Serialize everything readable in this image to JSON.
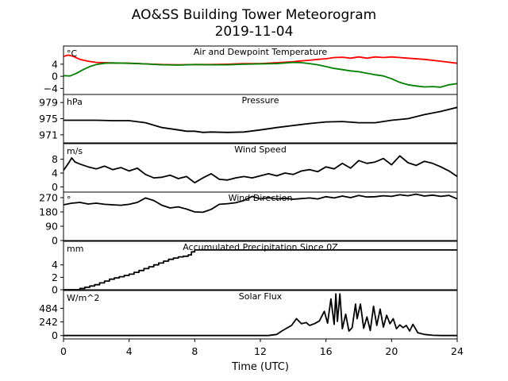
{
  "chart_data": {
    "type": "line",
    "title": "AO&SS Building Tower Meteorogram",
    "subtitle": "2019-11-04",
    "xlabel": "Time (UTC)",
    "xlim": [
      0,
      24
    ],
    "xticks": [
      0,
      4,
      8,
      12,
      16,
      20,
      24
    ],
    "panels": [
      {
        "title": "Air and Dewpoint Temperature",
        "unit": "°C",
        "ylim": [
          -6,
          10
        ],
        "yticks": [
          -4,
          0,
          4
        ],
        "series": [
          {
            "color": "#ff0000",
            "x": [
              0,
              0.3,
              0.6,
              1.0,
              1.5,
              2.0,
              3,
              4,
              5,
              6,
              7,
              8,
              9,
              10,
              11,
              12,
              13,
              14,
              14.5,
              15,
              15.5,
              16,
              16.5,
              17,
              17.5,
              18,
              18.5,
              19,
              19.5,
              20,
              20.5,
              21,
              22,
              23,
              24
            ],
            "y": [
              6.6,
              7.0,
              6.6,
              5.6,
              5.0,
              4.6,
              4.4,
              4.3,
              4.1,
              3.9,
              3.8,
              3.9,
              3.9,
              4.0,
              4.2,
              4.2,
              4.5,
              4.8,
              5.1,
              5.3,
              5.6,
              5.8,
              6.2,
              6.3,
              6.0,
              6.4,
              6.0,
              6.4,
              6.2,
              6.4,
              6.2,
              6.0,
              5.6,
              5.0,
              4.3
            ]
          },
          {
            "color": "#008000",
            "x": [
              0,
              0.4,
              0.8,
              1.2,
              1.6,
              2.0,
              2.5,
              3,
              4,
              5,
              6,
              7,
              8,
              9,
              10,
              11,
              12,
              13,
              14,
              14.5,
              15,
              15.5,
              16,
              16.5,
              17,
              17.5,
              18,
              18.5,
              19,
              19.5,
              20,
              20.5,
              21,
              21.5,
              22,
              22.5,
              23,
              23.5,
              24
            ],
            "y": [
              0.2,
              0.1,
              1.0,
              2.2,
              3.2,
              3.9,
              4.3,
              4.4,
              4.3,
              4.1,
              3.8,
              3.7,
              3.9,
              3.8,
              3.8,
              4.0,
              4.1,
              4.2,
              4.6,
              4.5,
              4.2,
              3.8,
              3.2,
              2.6,
              2.2,
              1.8,
              1.5,
              1.0,
              0.5,
              0.1,
              -0.8,
              -2.0,
              -2.8,
              -3.2,
              -3.5,
              -3.4,
              -3.6,
              -2.8,
              -2.4
            ]
          }
        ]
      },
      {
        "title": "Pressure",
        "unit": "hPa",
        "ylim": [
          969,
          981
        ],
        "yticks": [
          971,
          975,
          979
        ],
        "series": [
          {
            "color": "#000000",
            "x": [
              0,
              1,
              2,
              3,
              4,
              5,
              6,
              7,
              7.5,
              8,
              8.5,
              9,
              10,
              11,
              12,
              13,
              14,
              15,
              16,
              17,
              18,
              19,
              20,
              21,
              22,
              23,
              24
            ],
            "y": [
              974.6,
              974.6,
              974.6,
              974.5,
              974.5,
              974.0,
              972.8,
              972.2,
              971.9,
              971.9,
              971.6,
              971.7,
              971.6,
              971.7,
              972.2,
              972.8,
              973.3,
              973.8,
              974.2,
              974.3,
              974.0,
              974.0,
              974.6,
              975.0,
              976.0,
              976.8,
              977.8
            ]
          }
        ]
      },
      {
        "title": "Wind Speed",
        "unit": "m/s",
        "ylim": [
          -1.5,
          12.5
        ],
        "yticks": [
          0,
          4,
          8
        ],
        "series": [
          {
            "color": "#000000",
            "x": [
              0,
              0.3,
              0.5,
              0.7,
              1.0,
              1.5,
              2,
              2.5,
              3,
              3.5,
              4,
              4.5,
              5,
              5.5,
              6,
              6.5,
              7,
              7.5,
              8,
              8.5,
              9,
              9.5,
              10,
              10.5,
              11,
              11.5,
              12,
              12.5,
              13,
              13.5,
              14,
              14.5,
              15,
              15.5,
              16,
              16.5,
              17,
              17.5,
              18,
              18.5,
              19,
              19.5,
              20,
              20.5,
              21,
              21.5,
              22,
              22.5,
              23,
              23.5,
              24
            ],
            "y": [
              4.8,
              6.8,
              8.4,
              7.2,
              6.6,
              5.8,
              5.2,
              6.0,
              5.0,
              5.6,
              4.6,
              5.4,
              3.6,
              2.6,
              2.8,
              3.4,
              2.4,
              3.0,
              1.2,
              2.6,
              3.8,
              2.2,
              2.0,
              2.6,
              3.0,
              2.6,
              3.2,
              3.8,
              3.2,
              4.0,
              3.6,
              4.6,
              5.0,
              4.4,
              5.8,
              5.2,
              6.8,
              5.4,
              7.6,
              6.8,
              7.2,
              8.2,
              6.4,
              9.0,
              7.0,
              6.2,
              7.4,
              6.8,
              5.8,
              4.6,
              3.0
            ]
          }
        ]
      },
      {
        "title": "Wind Direction",
        "unit": "°",
        "ylim": [
          0,
          305
        ],
        "yticks": [
          0,
          90,
          180,
          270
        ],
        "series": [
          {
            "color": "#000000",
            "x": [
              0,
              0.5,
              1,
              1.5,
              2,
              2.5,
              3,
              3.5,
              4,
              4.5,
              5,
              5.5,
              6,
              6.5,
              7,
              7.5,
              8,
              8.5,
              9,
              9.5,
              10,
              10.5,
              11,
              11.5,
              12,
              12.5,
              13,
              13.5,
              14,
              14.5,
              15,
              15.5,
              16,
              16.5,
              17,
              17.5,
              18,
              18.5,
              19,
              19.5,
              20,
              20.5,
              21,
              21.5,
              22,
              22.5,
              23,
              23.5,
              24
            ],
            "y": [
              225,
              235,
              240,
              230,
              235,
              228,
              225,
              222,
              228,
              240,
              268,
              252,
              222,
              205,
              212,
              198,
              180,
              178,
              196,
              228,
              232,
              238,
              252,
              278,
              262,
              270,
              262,
              266,
              260,
              264,
              268,
              262,
              276,
              268,
              280,
              270,
              284,
              274,
              276,
              282,
              278,
              288,
              282,
              292,
              280,
              286,
              278,
              284,
              262
            ]
          }
        ]
      },
      {
        "title": "Accumulated Precipitation Since 0Z",
        "unit": "mm",
        "ylim": [
          0,
          7.8
        ],
        "yticks": [
          0,
          2,
          4
        ],
        "step": true,
        "series": [
          {
            "color": "#000000",
            "x": [
              0,
              1.0,
              1.3,
              1.6,
              1.9,
              2.2,
              2.5,
              2.8,
              3.1,
              3.4,
              3.7,
              4.0,
              4.3,
              4.6,
              4.9,
              5.2,
              5.5,
              5.8,
              6.1,
              6.4,
              6.7,
              7.0,
              7.3,
              7.6,
              7.8,
              8.0,
              24
            ],
            "y": [
              0,
              0.2,
              0.4,
              0.6,
              0.8,
              1.1,
              1.4,
              1.7,
              1.9,
              2.1,
              2.3,
              2.5,
              2.8,
              3.1,
              3.4,
              3.7,
              4.0,
              4.3,
              4.6,
              4.9,
              5.1,
              5.3,
              5.4,
              5.6,
              6.1,
              6.4,
              6.4
            ]
          }
        ]
      },
      {
        "title": "Solar Flux",
        "unit": "W/m^2",
        "ylim": [
          -60,
          800
        ],
        "yticks": [
          0,
          242,
          484
        ],
        "series": [
          {
            "color": "#000000",
            "x": [
              0,
              12.5,
              13.0,
              13.3,
              13.6,
              13.9,
              14.2,
              14.5,
              14.8,
              15.0,
              15.3,
              15.6,
              15.9,
              16.1,
              16.3,
              16.5,
              16.6,
              16.7,
              16.85,
              17.0,
              17.2,
              17.4,
              17.6,
              17.8,
              17.9,
              18.1,
              18.3,
              18.5,
              18.7,
              18.9,
              19.1,
              19.3,
              19.5,
              19.7,
              19.9,
              20.1,
              20.3,
              20.5,
              20.7,
              20.9,
              21.1,
              21.3,
              21.6,
              22.0,
              22.5,
              23.0,
              24
            ],
            "y": [
              0,
              0,
              20,
              80,
              130,
              180,
              300,
              210,
              230,
              180,
              210,
              260,
              430,
              220,
              650,
              200,
              740,
              250,
              740,
              120,
              380,
              80,
              140,
              560,
              300,
              560,
              130,
              330,
              90,
              520,
              180,
              470,
              150,
              360,
              210,
              300,
              120,
              190,
              140,
              180,
              80,
              200,
              50,
              20,
              5,
              0,
              0
            ]
          }
        ]
      }
    ]
  }
}
